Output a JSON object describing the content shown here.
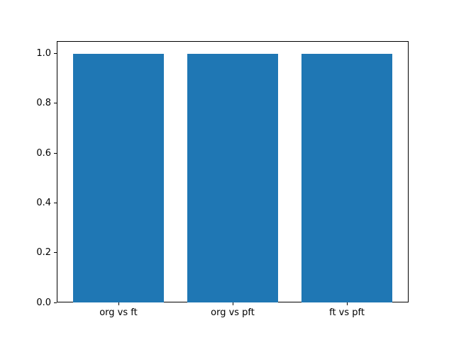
{
  "chart_data": {
    "type": "bar",
    "title": "",
    "xlabel": "",
    "ylabel": "",
    "categories": [
      "org vs ft",
      "org vs pft",
      "ft vs pft"
    ],
    "values": [
      1.0,
      1.0,
      1.0
    ],
    "bar_width": 0.8,
    "bar_color": "#1f77b4",
    "ylim": [
      0,
      1.05
    ],
    "yticks": [
      0.0,
      0.2,
      0.4,
      0.6,
      0.8,
      1.0
    ],
    "ytick_labels": [
      "0.0",
      "0.2",
      "0.4",
      "0.6",
      "0.8",
      "1.0"
    ],
    "grid": false,
    "legend": null,
    "spine_color": "#000000",
    "background_color": "#ffffff"
  }
}
